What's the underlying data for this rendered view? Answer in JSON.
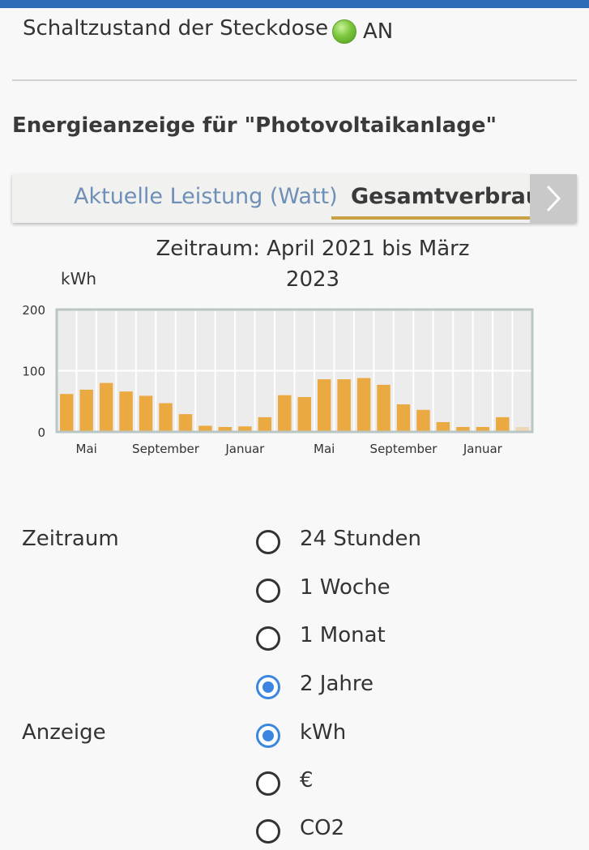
{
  "status": {
    "label": "Schaltzustand der Steckdose",
    "value": "AN",
    "indicator_color": "#7cc63c"
  },
  "section": {
    "title": "Energieanzeige für \"Photovoltaikanlage\""
  },
  "tabs": {
    "items": [
      {
        "label": "Aktuelle Leistung (Watt)",
        "active": false
      },
      {
        "label": "Gesamtverbrauch",
        "active": true
      }
    ],
    "next_icon": "chevron-right-icon",
    "active_color": "#c9a145"
  },
  "chart": {
    "title": "Zeitraum: April 2021 bis März 2023",
    "ylabel": "kWh"
  },
  "chart_data": {
    "type": "bar",
    "title": "Zeitraum: April 2021 bis März 2023",
    "ylabel": "kWh",
    "xlabel": "",
    "ylim": [
      0,
      200
    ],
    "yticks": [
      0,
      100,
      200
    ],
    "categories": [
      "Apr 2021",
      "Mai 2021",
      "Jun 2021",
      "Jul 2021",
      "Aug 2021",
      "Sep 2021",
      "Okt 2021",
      "Nov 2021",
      "Dez 2021",
      "Jan 2022",
      "Feb 2022",
      "Mär 2022",
      "Apr 2022",
      "Mai 2022",
      "Jun 2022",
      "Jul 2022",
      "Aug 2022",
      "Sep 2022",
      "Okt 2022",
      "Nov 2022",
      "Dez 2022",
      "Jan 2023",
      "Feb 2023",
      "Mär 2023"
    ],
    "x_tick_labels": [
      {
        "index": 1,
        "label": "Mai"
      },
      {
        "index": 5,
        "label": "September"
      },
      {
        "index": 9,
        "label": "Januar"
      },
      {
        "index": 13,
        "label": "Mai"
      },
      {
        "index": 17,
        "label": "September"
      },
      {
        "index": 21,
        "label": "Januar"
      }
    ],
    "values": [
      62,
      69,
      80,
      66,
      59,
      47,
      29,
      10,
      8,
      9,
      24,
      60,
      57,
      86,
      86,
      88,
      77,
      45,
      36,
      16,
      8,
      8,
      24,
      8
    ],
    "partial_last": true,
    "bar_color": "#eaa941",
    "grid": true
  },
  "form": {
    "period": {
      "label": "Zeitraum",
      "options": [
        {
          "label": "24 Stunden",
          "checked": false
        },
        {
          "label": "1 Woche",
          "checked": false
        },
        {
          "label": "1 Monat",
          "checked": false
        },
        {
          "label": "2 Jahre",
          "checked": true
        }
      ]
    },
    "display": {
      "label": "Anzeige",
      "options": [
        {
          "label": "kWh",
          "checked": true
        },
        {
          "label": "€",
          "checked": false
        },
        {
          "label": "CO2",
          "checked": false
        }
      ]
    },
    "accent_color": "#3d86e0"
  }
}
